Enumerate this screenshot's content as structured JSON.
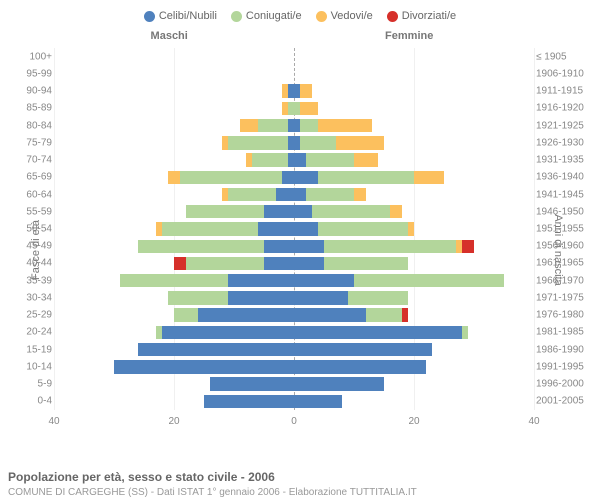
{
  "meta": {
    "title": "Popolazione per età, sesso e stato civile - 2006",
    "subtitle": "COMUNE DI CARGEGHE (SS) - Dati ISTAT 1° gennaio 2006 - Elaborazione TUTTITALIA.IT",
    "left_header": "Maschi",
    "right_header": "Femmine",
    "yaxis_left_title": "Fasce di età",
    "yaxis_right_title": "Anni di nascita"
  },
  "legend": [
    {
      "label": "Celibi/Nubili",
      "color": "#4f81bd"
    },
    {
      "label": "Coniugati/e",
      "color": "#b3d69b"
    },
    {
      "label": "Vedovi/e",
      "color": "#fcc05e"
    },
    {
      "label": "Divorziati/e",
      "color": "#d6302a"
    }
  ],
  "colors": {
    "grid": "#f0f0f0",
    "center_line": "#aaaaaa",
    "axis_text": "#888888",
    "background": "#ffffff"
  },
  "chart": {
    "type": "population-pyramid",
    "x_max": 40,
    "x_ticks": [
      40,
      20,
      0,
      20,
      40
    ],
    "bar_gap_ratio": 0.22,
    "rows": [
      {
        "age": "100+",
        "birth": "≤ 1905",
        "m": [
          0,
          0,
          0,
          0
        ],
        "f": [
          0,
          0,
          0,
          0
        ]
      },
      {
        "age": "95-99",
        "birth": "1906-1910",
        "m": [
          0,
          0,
          0,
          0
        ],
        "f": [
          0,
          0,
          0,
          0
        ]
      },
      {
        "age": "90-94",
        "birth": "1911-1915",
        "m": [
          1,
          0,
          1,
          0
        ],
        "f": [
          1,
          0,
          2,
          0
        ]
      },
      {
        "age": "85-89",
        "birth": "1916-1920",
        "m": [
          0,
          1,
          1,
          0
        ],
        "f": [
          0,
          1,
          3,
          0
        ]
      },
      {
        "age": "80-84",
        "birth": "1921-1925",
        "m": [
          1,
          5,
          3,
          0
        ],
        "f": [
          1,
          3,
          9,
          0
        ]
      },
      {
        "age": "75-79",
        "birth": "1926-1930",
        "m": [
          1,
          10,
          1,
          0
        ],
        "f": [
          1,
          6,
          8,
          0
        ]
      },
      {
        "age": "70-74",
        "birth": "1931-1935",
        "m": [
          1,
          6,
          1,
          0
        ],
        "f": [
          2,
          8,
          4,
          0
        ]
      },
      {
        "age": "65-69",
        "birth": "1936-1940",
        "m": [
          2,
          17,
          2,
          0
        ],
        "f": [
          4,
          16,
          5,
          0
        ]
      },
      {
        "age": "60-64",
        "birth": "1941-1945",
        "m": [
          3,
          8,
          1,
          0
        ],
        "f": [
          2,
          8,
          2,
          0
        ]
      },
      {
        "age": "55-59",
        "birth": "1946-1950",
        "m": [
          5,
          13,
          0,
          0
        ],
        "f": [
          3,
          13,
          2,
          0
        ]
      },
      {
        "age": "50-54",
        "birth": "1951-1955",
        "m": [
          6,
          16,
          1,
          0
        ],
        "f": [
          4,
          15,
          1,
          0
        ]
      },
      {
        "age": "45-49",
        "birth": "1956-1960",
        "m": [
          5,
          21,
          0,
          0
        ],
        "f": [
          5,
          22,
          1,
          2
        ]
      },
      {
        "age": "40-44",
        "birth": "1961-1965",
        "m": [
          5,
          13,
          0,
          2
        ],
        "f": [
          5,
          14,
          0,
          0
        ]
      },
      {
        "age": "35-39",
        "birth": "1966-1970",
        "m": [
          11,
          18,
          0,
          0
        ],
        "f": [
          10,
          25,
          0,
          0
        ]
      },
      {
        "age": "30-34",
        "birth": "1971-1975",
        "m": [
          11,
          10,
          0,
          0
        ],
        "f": [
          9,
          10,
          0,
          0
        ]
      },
      {
        "age": "25-29",
        "birth": "1976-1980",
        "m": [
          16,
          4,
          0,
          0
        ],
        "f": [
          12,
          6,
          0,
          1
        ]
      },
      {
        "age": "20-24",
        "birth": "1981-1985",
        "m": [
          22,
          1,
          0,
          0
        ],
        "f": [
          28,
          1,
          0,
          0
        ]
      },
      {
        "age": "15-19",
        "birth": "1986-1990",
        "m": [
          26,
          0,
          0,
          0
        ],
        "f": [
          23,
          0,
          0,
          0
        ]
      },
      {
        "age": "10-14",
        "birth": "1991-1995",
        "m": [
          30,
          0,
          0,
          0
        ],
        "f": [
          22,
          0,
          0,
          0
        ]
      },
      {
        "age": "5-9",
        "birth": "1996-2000",
        "m": [
          14,
          0,
          0,
          0
        ],
        "f": [
          15,
          0,
          0,
          0
        ]
      },
      {
        "age": "0-4",
        "birth": "2001-2005",
        "m": [
          15,
          0,
          0,
          0
        ],
        "f": [
          8,
          0,
          0,
          0
        ]
      }
    ]
  }
}
